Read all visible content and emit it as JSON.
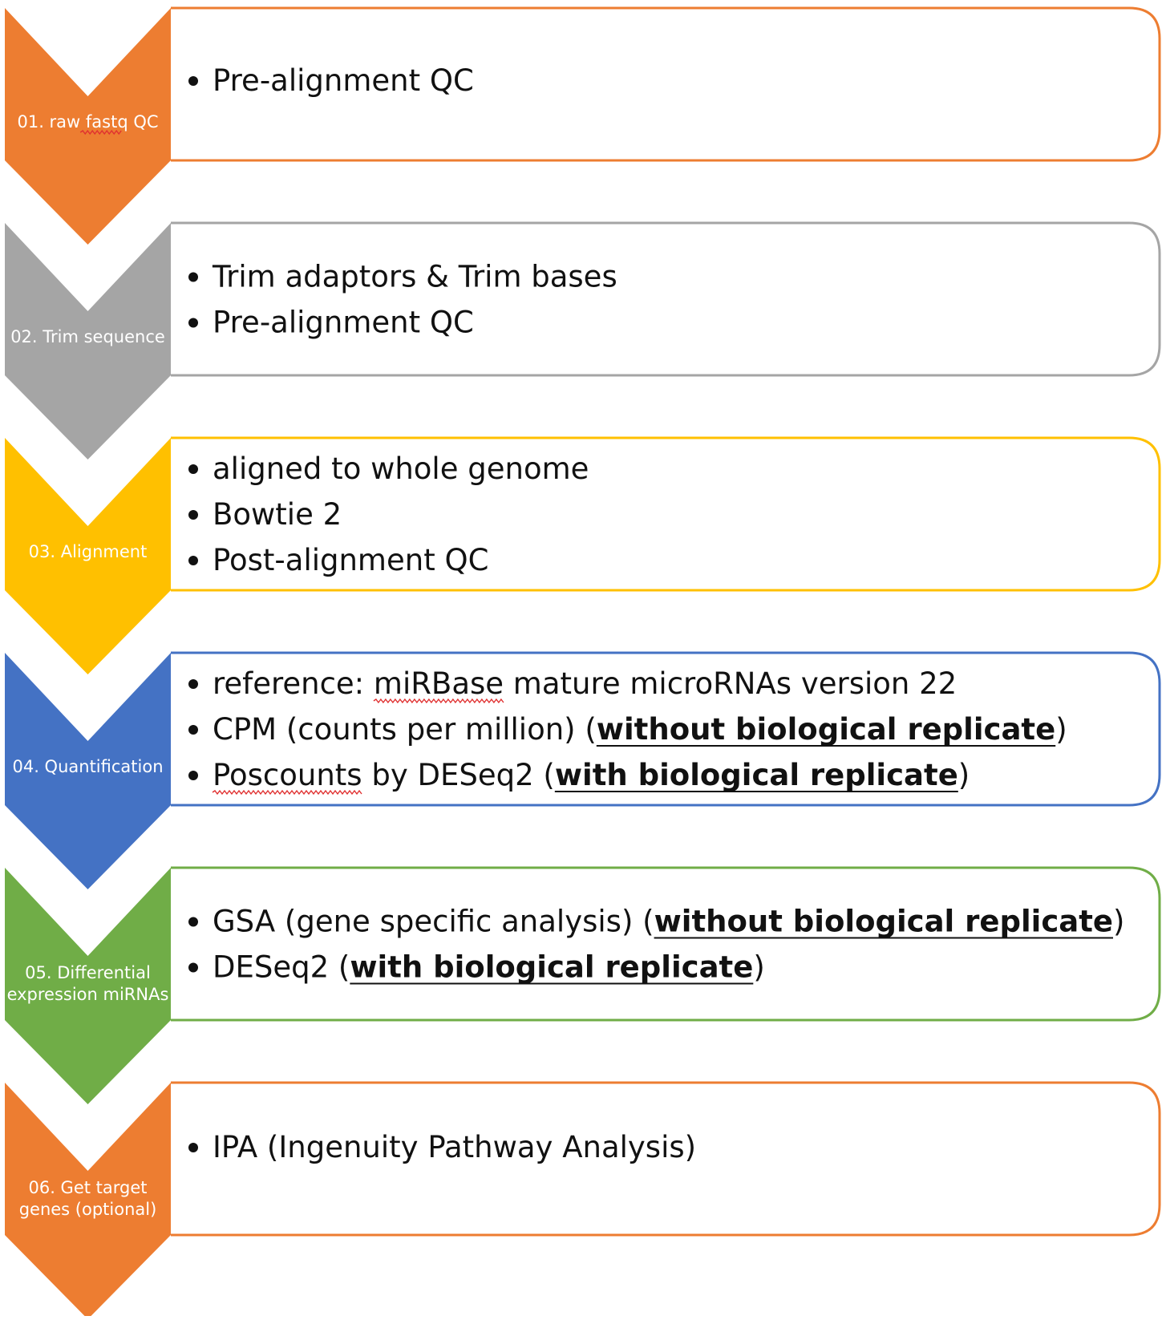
{
  "colors": {
    "orange": "#ED7D31",
    "gray": "#A5A5A5",
    "yellow": "#FFC000",
    "blue": "#4472C4",
    "green": "#70AD47"
  },
  "steps": [
    {
      "label": [
        "01. raw fastq QC"
      ],
      "color": "#ED7D31",
      "bullets": [
        [
          {
            "t": "Pre-alignment QC"
          }
        ]
      ]
    },
    {
      "label": [
        "02. Trim sequence"
      ],
      "color": "#A5A5A5",
      "bullets": [
        [
          {
            "t": "Trim adaptors & Trim bases"
          }
        ],
        [
          {
            "t": "Pre-alignment QC"
          }
        ]
      ]
    },
    {
      "label": [
        "03. Alignment"
      ],
      "color": "#FFC000",
      "bullets": [
        [
          {
            "t": "aligned to whole genome"
          }
        ],
        [
          {
            "t": "Bowtie 2"
          }
        ],
        [
          {
            "t": "Post-alignment QC"
          }
        ]
      ]
    },
    {
      "label": [
        "04. Quantification"
      ],
      "color": "#4472C4",
      "bullets": [
        [
          {
            "t": "reference: miRBase mature microRNAs version 22"
          }
        ],
        [
          {
            "t": "CPM (counts per million) ("
          },
          {
            "t": "without biological replicate",
            "b": true
          },
          {
            "t": ")"
          }
        ],
        [
          {
            "t": "Poscounts by DESeq2 ("
          },
          {
            "t": "with biological replicate",
            "b": true
          },
          {
            "t": ")"
          }
        ]
      ]
    },
    {
      "label": [
        "05. Differential",
        "expression miRNAs"
      ],
      "color": "#70AD47",
      "bullets": [
        [
          {
            "t": "GSA (gene specific analysis) ("
          },
          {
            "t": "without biological replicate",
            "b": true
          },
          {
            "t": ")"
          }
        ],
        [
          {
            "t": "DESeq2 ("
          },
          {
            "t": "with biological replicate",
            "b": true
          },
          {
            "t": ")"
          }
        ]
      ]
    },
    {
      "label": [
        "06. Get target",
        "genes (optional)"
      ],
      "color": "#ED7D31",
      "bullets": [
        [
          {
            "t": "IPA (Ingenuity Pathway Analysis)"
          }
        ]
      ]
    }
  ]
}
